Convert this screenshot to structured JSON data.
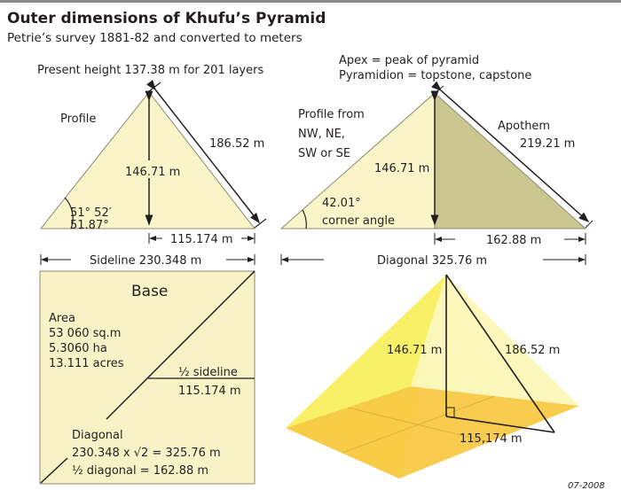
{
  "header": {
    "title": "Outer dimensions of Khufu’s Pyramid",
    "subtitle": "Petrie’s survey 1881-82 and converted to meters"
  },
  "profile": {
    "present_height": "Present height 137.38 m for 201 layers",
    "label": "Profile",
    "slant": "186.52 m",
    "height": "146.71 m",
    "angle_dms": "51° 52′",
    "angle_dec": "51.87°",
    "half_side": "115.174 m",
    "sideline": "Sideline 230.348 m"
  },
  "diagonal_profile": {
    "apex_note": "Apex = peak of pyramid",
    "pyramidion_note": "Pyramidion = topstone, capstone",
    "label_lines": [
      "Profile from",
      "NW, NE,",
      "SW or SE"
    ],
    "apothem_label": "Apothem",
    "apothem_value": "219.21 m",
    "height": "146.71 m",
    "angle": "42.01°",
    "angle_label": "corner angle",
    "half_diagonal": "162.88 m",
    "diagonal": "Diagonal 325.76 m"
  },
  "base": {
    "title": "Base",
    "area_lines": [
      "Area",
      "53 060 sq.m",
      "5.3060 ha",
      "13.111 acres"
    ],
    "half_sideline_label": "½ sideline",
    "half_sideline_value": "115.174 m",
    "diagonal_label": "Diagonal",
    "diagonal_formula": "230.348 x √2 = 325.76 m",
    "half_diagonal": "½ diagonal = 162.88 m"
  },
  "perspective": {
    "height": "146.71 m",
    "slant": "186.52 m",
    "half_side": "115,174 m"
  },
  "footer": {
    "date": "07-2008"
  },
  "colors": {
    "light_face": "#f9f5c8",
    "dark_face": "#c9c68f",
    "base_fill": "#f8f3c6",
    "pyramid_yellow": "#f7ee4a",
    "floor": "#f6bf2a"
  }
}
